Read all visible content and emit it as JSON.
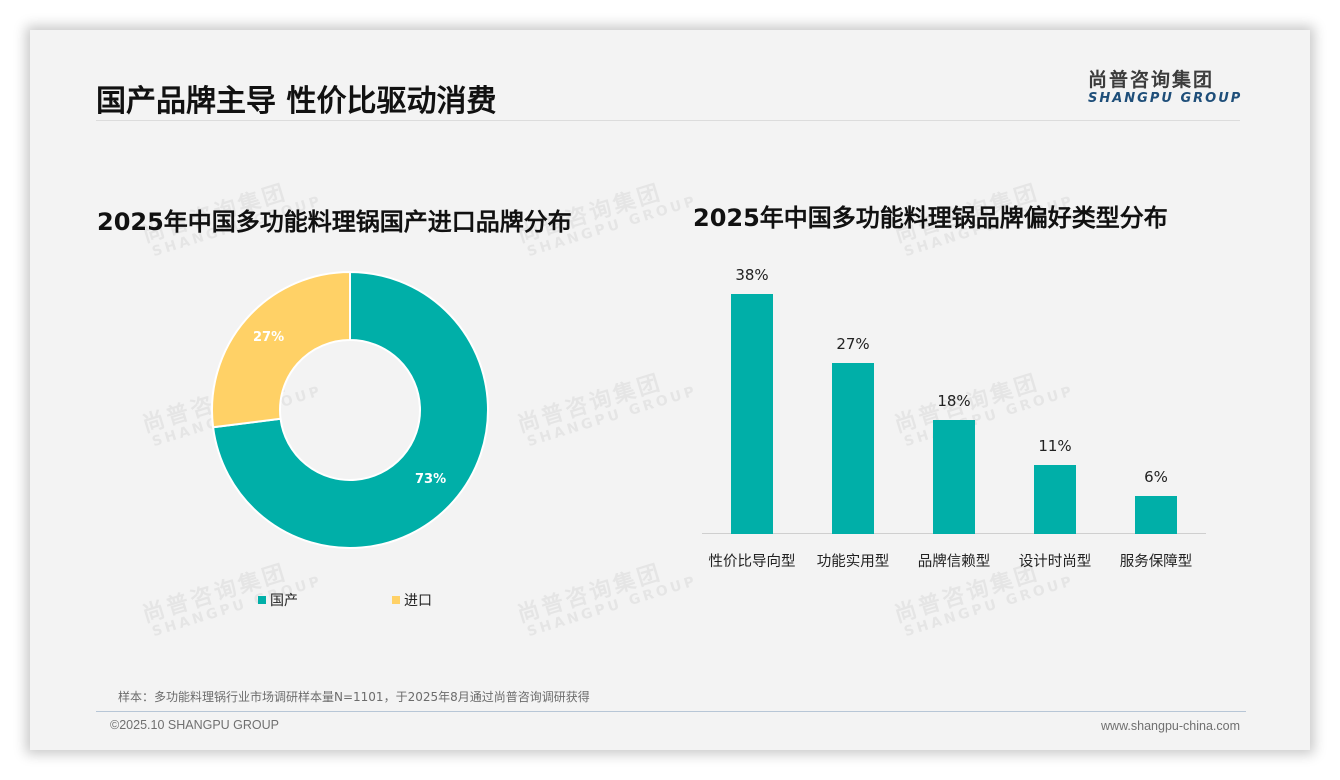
{
  "page": {
    "title": "国产品牌主导 性价比驱动消费",
    "logo_cn": "尚普咨询集团",
    "logo_en": "SHANGPU GROUP",
    "watermark_cn": "尚普咨询集团",
    "watermark_en": "SHANGPU GROUP"
  },
  "colors": {
    "teal": "#00afa8",
    "yellow": "#ffd166",
    "background": "#f3f3f3"
  },
  "chart_data": [
    {
      "type": "pie",
      "title": "2025年中国多功能料理锅国产进口品牌分布",
      "donut": true,
      "categories": [
        "国产",
        "进口"
      ],
      "values": [
        73,
        27
      ],
      "labels": [
        "73%",
        "27%"
      ],
      "colors": [
        "#00afa8",
        "#ffd166"
      ],
      "legend_position": "bottom"
    },
    {
      "type": "bar",
      "title": "2025年中国多功能料理锅品牌偏好类型分布",
      "categories": [
        "性价比导向型",
        "功能实用型",
        "品牌信赖型",
        "设计时尚型",
        "服务保障型"
      ],
      "values": [
        38,
        27,
        18,
        11,
        6
      ],
      "labels": [
        "38%",
        "27%",
        "18%",
        "11%",
        "6%"
      ],
      "xlabel": "",
      "ylabel": "",
      "ylim": [
        0,
        40
      ],
      "grid": false,
      "color": "#00afa8"
    }
  ],
  "legend": [
    {
      "label": "国产",
      "color": "#00afa8"
    },
    {
      "label": "进口",
      "color": "#ffd166"
    }
  ],
  "footer": {
    "note": "样本：多功能料理锅行业市场调研样本量N=1101，于2025年8月通过尚普咨询调研获得",
    "copyright": "©2025.10 SHANGPU GROUP",
    "website": "www.shangpu-china.com"
  }
}
